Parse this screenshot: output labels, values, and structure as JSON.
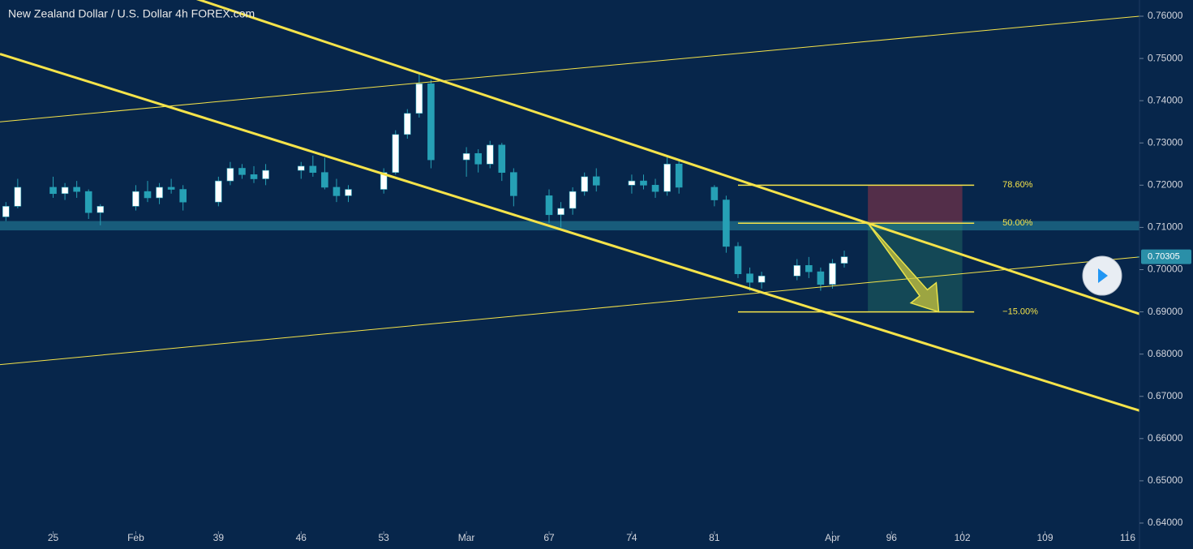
{
  "chart_data": {
    "type": "candlestick",
    "title": "New Zealand Dollar / U.S. Dollar  4h  FOREX.com",
    "x": [
      21,
      22,
      25,
      26,
      27,
      28,
      29,
      32,
      33,
      34,
      35,
      36,
      39,
      40,
      41,
      42,
      43,
      46,
      47,
      48,
      49,
      50,
      53,
      54,
      55,
      56,
      57,
      60,
      61,
      62,
      63,
      64,
      67,
      68,
      69,
      70,
      71,
      74,
      75,
      76,
      77,
      78,
      81,
      82,
      83,
      84,
      85,
      88,
      89,
      90,
      91,
      92
    ],
    "open": [
      0.7125,
      0.715,
      0.7195,
      0.718,
      0.7195,
      0.7185,
      0.7135,
      0.715,
      0.7185,
      0.717,
      0.7195,
      0.719,
      0.716,
      0.721,
      0.724,
      0.7225,
      0.7215,
      0.7235,
      0.7245,
      0.723,
      0.7195,
      0.7175,
      0.719,
      0.723,
      0.732,
      0.737,
      0.744,
      0.726,
      0.7275,
      0.725,
      0.7295,
      0.723,
      0.7175,
      0.713,
      0.7145,
      0.7185,
      0.722,
      0.72,
      0.721,
      0.72,
      0.7185,
      0.725,
      0.7195,
      0.7165,
      0.7055,
      0.699,
      0.697,
      0.6985,
      0.701,
      0.6995,
      0.6965,
      0.7015
    ],
    "high": [
      0.716,
      0.7215,
      0.722,
      0.7205,
      0.721,
      0.719,
      0.7155,
      0.72,
      0.721,
      0.7205,
      0.7215,
      0.72,
      0.722,
      0.7255,
      0.725,
      0.7245,
      0.725,
      0.7255,
      0.727,
      0.7265,
      0.7215,
      0.72,
      0.724,
      0.733,
      0.738,
      0.7465,
      0.745,
      0.729,
      0.7285,
      0.7305,
      0.73,
      0.724,
      0.719,
      0.716,
      0.7195,
      0.723,
      0.724,
      0.7225,
      0.7225,
      0.7215,
      0.727,
      0.726,
      0.72,
      0.7175,
      0.7065,
      0.7005,
      0.6995,
      0.7025,
      0.703,
      0.7005,
      0.7025,
      0.7045
    ],
    "low": [
      0.7115,
      0.7145,
      0.717,
      0.7165,
      0.717,
      0.712,
      0.7105,
      0.714,
      0.716,
      0.7155,
      0.718,
      0.714,
      0.715,
      0.72,
      0.7215,
      0.7205,
      0.72,
      0.7215,
      0.722,
      0.719,
      0.716,
      0.716,
      0.718,
      0.7225,
      0.731,
      0.736,
      0.724,
      0.722,
      0.723,
      0.724,
      0.721,
      0.715,
      0.711,
      0.71,
      0.713,
      0.7175,
      0.7185,
      0.718,
      0.719,
      0.717,
      0.7175,
      0.718,
      0.715,
      0.704,
      0.698,
      0.695,
      0.6955,
      0.6975,
      0.698,
      0.695,
      0.6955,
      0.7005
    ],
    "close": [
      0.715,
      0.7195,
      0.718,
      0.7195,
      0.7185,
      0.7135,
      0.715,
      0.7185,
      0.717,
      0.7195,
      0.719,
      0.716,
      0.721,
      0.724,
      0.7225,
      0.7215,
      0.7235,
      0.7245,
      0.723,
      0.7195,
      0.7175,
      0.719,
      0.723,
      0.732,
      0.737,
      0.744,
      0.726,
      0.7275,
      0.725,
      0.7295,
      0.723,
      0.7175,
      0.713,
      0.7145,
      0.7185,
      0.722,
      0.72,
      0.721,
      0.72,
      0.7185,
      0.725,
      0.7195,
      0.7165,
      0.7055,
      0.699,
      0.697,
      0.6985,
      0.701,
      0.6995,
      0.6965,
      0.7015,
      0.70305
    ],
    "up_color": "#ffffff",
    "down_color": "#26a0b5",
    "xlim": [
      20.5,
      117
    ],
    "ylim": [
      0.63808,
      0.76384
    ],
    "xticks": [
      25,
      {
        "value": 32,
        "label": "Feb"
      },
      39,
      46,
      53,
      {
        "value": 60,
        "label": "Mar"
      },
      67,
      74,
      81,
      {
        "value": 91,
        "label": "Apr"
      },
      96,
      102,
      109,
      116
    ],
    "yticks": [
      {
        "value": 0.64,
        "label": "0.64000"
      },
      {
        "value": 0.65,
        "label": "0.65000"
      },
      {
        "value": 0.66,
        "label": "0.66000"
      },
      {
        "value": 0.67,
        "label": "0.67000"
      },
      {
        "value": 0.68,
        "label": "0.68000"
      },
      {
        "value": 0.69,
        "label": "0.69000"
      },
      {
        "value": 0.7,
        "label": "0.70000"
      },
      {
        "value": 0.71,
        "label": "0.71000"
      },
      {
        "value": 0.72,
        "label": "0.72000"
      },
      {
        "value": 0.73,
        "label": "0.73000"
      },
      {
        "value": 0.74,
        "label": "0.74000"
      },
      {
        "value": 0.75,
        "label": "0.75000"
      },
      {
        "value": 0.76,
        "label": "0.76000"
      }
    ],
    "last_price": 0.70305,
    "trendlines": [
      {
        "x": [
          56,
          94
        ],
        "y": [
          0.7465,
          0.711
        ],
        "width": 3
      },
      {
        "x": [
          48,
          84
        ],
        "y": [
          0.727,
          0.6955
        ],
        "width": 3
      },
      {
        "x": [
          20.5,
          117
        ],
        "y": [
          0.735,
          0.76
        ],
        "width": 1
      },
      {
        "x": [
          20.5,
          117
        ],
        "y": [
          0.6775,
          0.703
        ],
        "width": 1
      }
    ],
    "zone": [
      0.7093,
      0.7115
    ],
    "position": {
      "x": [
        94,
        102
      ],
      "stop": 0.72,
      "entry": 0.711,
      "target": 0.69
    },
    "fib_x": [
      83,
      103
    ],
    "fib_levels": [
      {
        "value": 0.72,
        "label": "78.60%"
      },
      {
        "value": 0.711,
        "label": "50.00%"
      },
      {
        "value": 0.69,
        "label": "−15.00%"
      }
    ],
    "arrow": {
      "x": [
        94,
        100
      ],
      "y": [
        0.711,
        0.69
      ]
    }
  }
}
